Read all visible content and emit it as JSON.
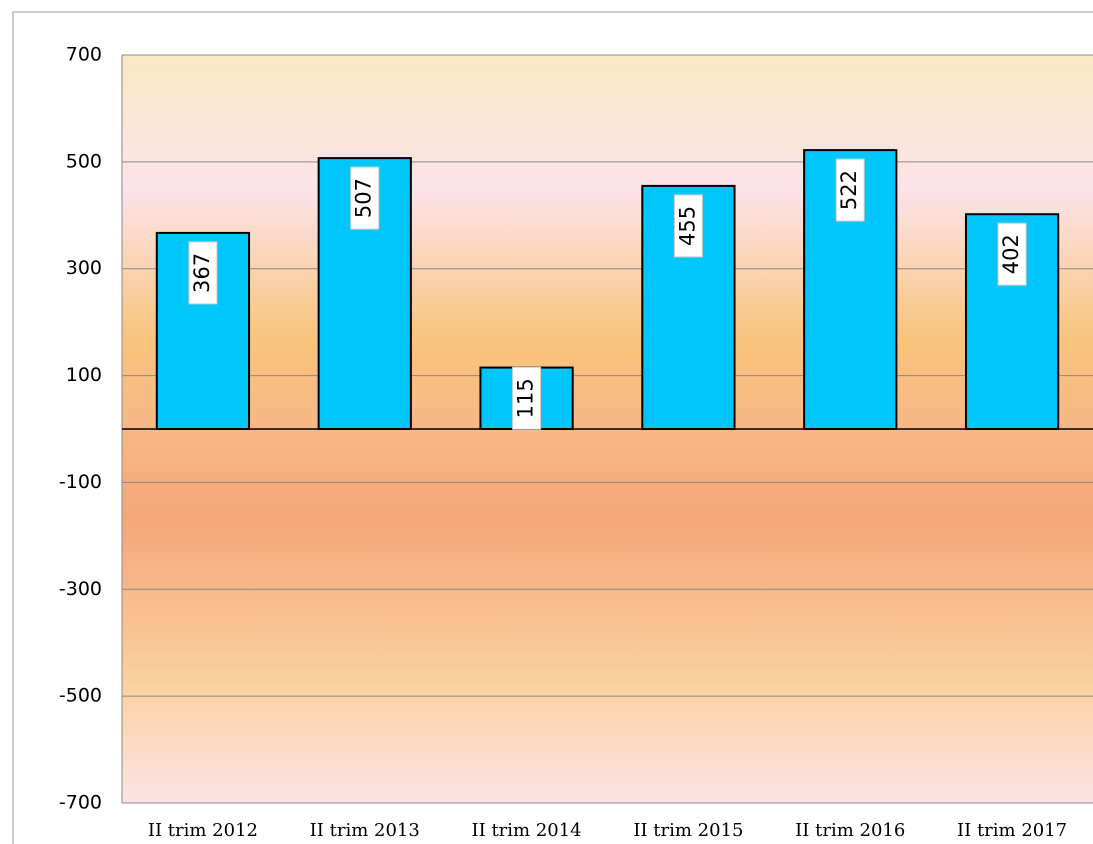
{
  "chart_data": {
    "type": "bar",
    "categories": [
      "II trim 2012",
      "II trim 2013",
      "II trim 2014",
      "II trim 2015",
      "II trim 2016",
      "II trim 2017"
    ],
    "values": [
      367,
      507,
      115,
      455,
      522,
      402
    ],
    "color": "#00c6fa",
    "ylim": [
      -700,
      700
    ],
    "yticks": [
      -700,
      -500,
      -300,
      -100,
      100,
      300,
      500,
      700
    ],
    "grid": true
  }
}
